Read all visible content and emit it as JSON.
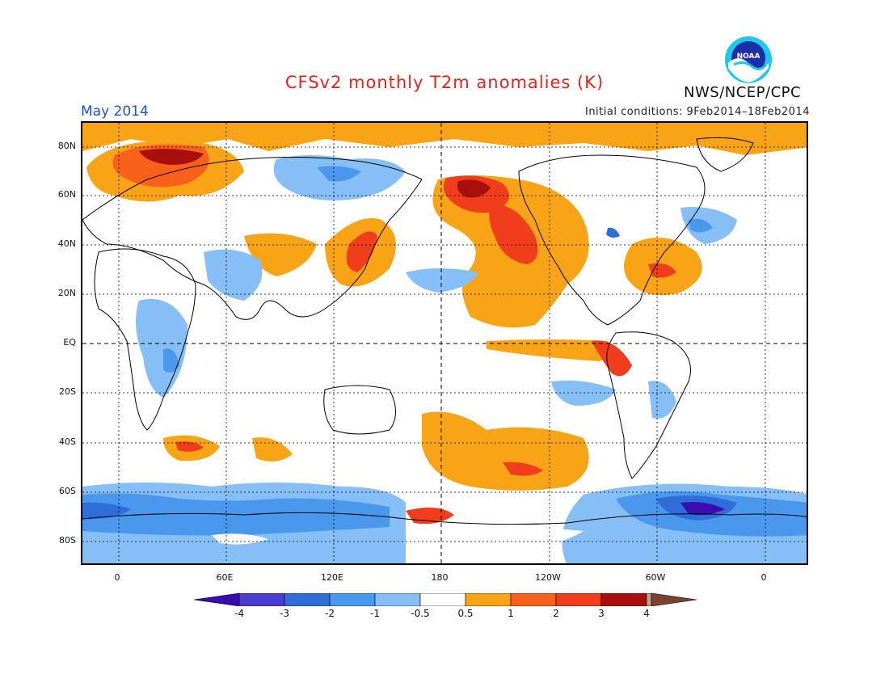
{
  "title": "CFSv2 monthly T2m anomalies (K)",
  "month": "May 2014",
  "initial_conditions": "Initial conditions: 9Feb2014–18Feb2014",
  "agency": "NWS/NCEP/CPC",
  "logo_text": "NOAA",
  "colors": {
    "title": "#e8231a",
    "month": "#2050e0",
    "neg4": "#3a0db0",
    "neg3": "#4a3ed0",
    "neg2": "#2f6ed8",
    "neg1": "#4a98ee",
    "neg05": "#86bff6",
    "zero": "#ffffff",
    "pos05": "#f9a416",
    "pos1": "#f9611b",
    "pos2": "#f03d1c",
    "pos3": "#a80e0c",
    "pos4": "#c69e8c",
    "pos5": "#7a4330"
  },
  "y_axis": {
    "labels": [
      "80N",
      "60N",
      "40N",
      "20N",
      "EQ",
      "20S",
      "40S",
      "60S",
      "80S"
    ]
  },
  "x_axis": {
    "labels": [
      "0",
      "60E",
      "120E",
      "180",
      "120W",
      "60W",
      "0"
    ]
  },
  "colorbar": {
    "labels": [
      "-4",
      "-3",
      "-2",
      "-1",
      "-0.5",
      "0.5",
      "1",
      "2",
      "3",
      "4"
    ]
  }
}
